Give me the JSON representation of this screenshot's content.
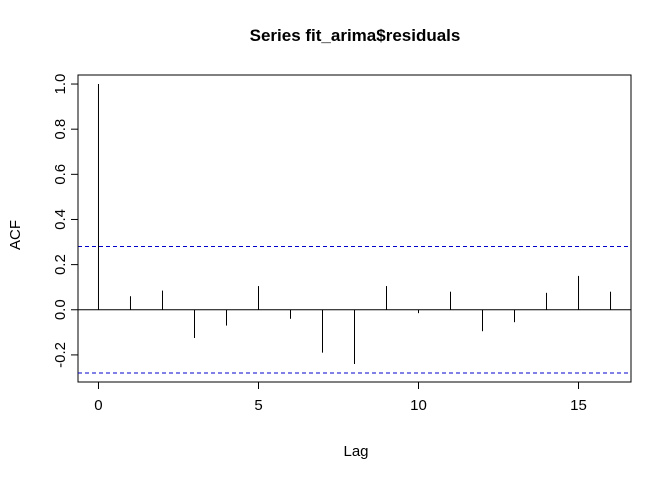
{
  "chart_data": {
    "type": "bar",
    "title": "Series  fit_arima$residuals",
    "xlabel": "Lag",
    "ylabel": "ACF",
    "x": [
      0,
      1,
      2,
      3,
      4,
      5,
      6,
      7,
      8,
      9,
      10,
      11,
      12,
      13,
      14,
      15,
      16
    ],
    "values": [
      1.0,
      0.06,
      0.085,
      -0.125,
      -0.07,
      0.105,
      -0.04,
      -0.19,
      -0.24,
      0.105,
      -0.015,
      0.08,
      -0.095,
      -0.055,
      0.075,
      0.15,
      0.08
    ],
    "xticks": [
      "0",
      "5",
      "10",
      "15"
    ],
    "yticks": [
      "-0.2",
      "0.0",
      "0.2",
      "0.4",
      "0.6",
      "0.8",
      "1.0"
    ],
    "xlim": [
      -0.64,
      16.64
    ],
    "ylim": [
      -0.32,
      1.04
    ],
    "confidence_bound": 0.28,
    "colors": {
      "bars": "#000000",
      "confidence": "#0000cc",
      "zero_line": "#000000"
    }
  }
}
